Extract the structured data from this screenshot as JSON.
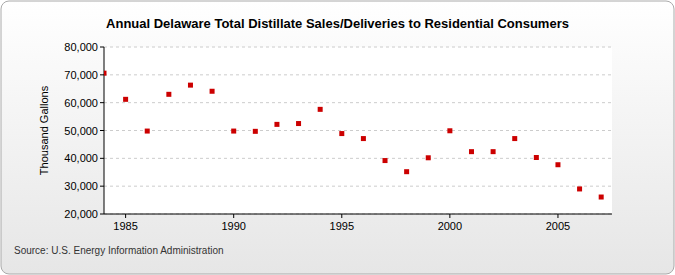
{
  "chart_data": {
    "type": "scatter",
    "title": "Annual Delaware Total Distillate Sales/Deliveries to Residential Consumers",
    "y_label": "Thousand Gallons",
    "source": "Source: U.S. Energy Information Administration",
    "x": [
      1984,
      1985,
      1986,
      1987,
      1988,
      1989,
      1990,
      1991,
      1992,
      1993,
      1994,
      1995,
      1996,
      1997,
      1998,
      1999,
      2000,
      2001,
      2002,
      2003,
      2004,
      2005,
      2006,
      2007
    ],
    "values": [
      70600,
      61200,
      49800,
      63000,
      66300,
      64100,
      49800,
      49700,
      52200,
      52500,
      57600,
      48900,
      47100,
      39200,
      35200,
      40200,
      49900,
      42400,
      42400,
      47100,
      40300,
      37700,
      29000,
      26100
    ],
    "color": "#cc0000",
    "marker": "square",
    "xlim": [
      1984,
      2007.5
    ],
    "xticks": [
      1985,
      1990,
      1995,
      2000,
      2005
    ],
    "ylim": [
      20000,
      80000
    ],
    "yticks": [
      {
        "value": 20000,
        "label": "20,000"
      },
      {
        "value": 30000,
        "label": "30,000"
      },
      {
        "value": 40000,
        "label": "40,000"
      },
      {
        "value": 50000,
        "label": "50,000"
      },
      {
        "value": 60000,
        "label": "60,000"
      },
      {
        "value": 70000,
        "label": "70,000"
      },
      {
        "value": 80000,
        "label": "80,000"
      }
    ],
    "grid": true
  }
}
